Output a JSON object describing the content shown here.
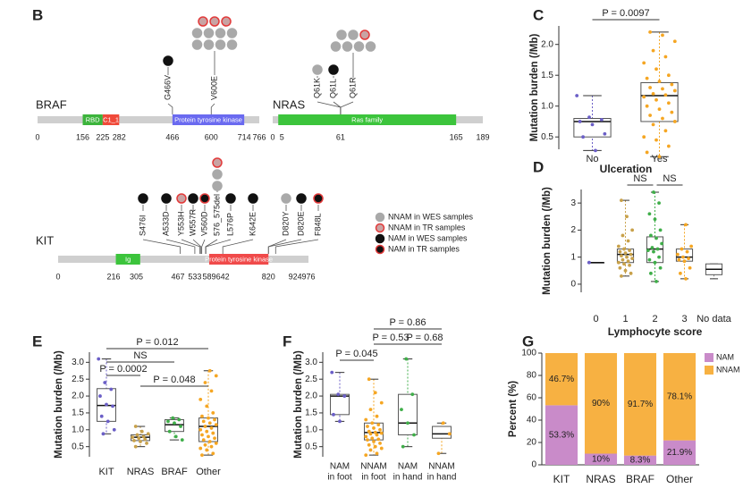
{
  "gene_diagram": {
    "panel_label": "B",
    "genes": [
      {
        "name": "BRAF",
        "length": 766,
        "ticks": [
          0,
          156,
          225,
          282,
          466,
          600,
          714,
          766
        ],
        "domains": [
          {
            "name": "RBD",
            "start": 156,
            "end": 225,
            "color": "#3cb43c"
          },
          {
            "name": "C1_1",
            "start": 225,
            "end": 282,
            "color": "#f04a3a"
          },
          {
            "name": "Protein tyrosine kinase",
            "start": 466,
            "end": 714,
            "color": "#6a6af0"
          }
        ],
        "mutations": [
          {
            "label": "G466V",
            "position": 466,
            "counts": {
              "nam_wes": 1
            }
          },
          {
            "label": "V600E",
            "position": 600,
            "counts": {
              "nnam_wes": 8,
              "nnam_tr": 3
            }
          }
        ]
      },
      {
        "name": "NRAS",
        "length": 189,
        "ticks": [
          0,
          5,
          61,
          165,
          189
        ],
        "domains": [
          {
            "name": "Ras family",
            "start": 5,
            "end": 165,
            "color": "#3cc43c"
          }
        ],
        "mutations": [
          {
            "label": "Q61K",
            "position": 61,
            "counts": {
              "nnam_wes": 1
            }
          },
          {
            "label": "Q61L",
            "position": 61,
            "counts": {
              "nam_wes": 1
            }
          },
          {
            "label": "Q61R",
            "position": 61,
            "counts": {
              "nnam_wes": 6,
              "nnam_tr": 1
            }
          }
        ]
      },
      {
        "name": "KIT",
        "length": 976,
        "ticks": [
          0,
          216,
          305,
          467,
          533,
          589,
          642,
          820,
          924,
          976
        ],
        "domains": [
          {
            "name": "Ig",
            "start": 225,
            "end": 320,
            "color": "#3cc43c"
          },
          {
            "name": "Protein tyrosine kinase",
            "start": 589,
            "end": 820,
            "color": "#f04a4a"
          }
        ],
        "mutations": [
          {
            "label": "S476I",
            "position": 476,
            "counts": {
              "nam_wes": 1
            }
          },
          {
            "label": "A533D",
            "position": 533,
            "counts": {
              "nam_wes": 1
            }
          },
          {
            "label": "Y553H",
            "position": 553,
            "counts": {
              "nnam_tr": 1
            }
          },
          {
            "label": "W557R",
            "position": 557,
            "counts": {
              "nam_wes": 1
            }
          },
          {
            "label": "V560D",
            "position": 560,
            "counts": {
              "nam_tr": 1
            }
          },
          {
            "label": "576_575del",
            "position": 575,
            "counts": {
              "nnam_wes": 2,
              "nnam_tr": 1
            }
          },
          {
            "label": "L576P",
            "position": 576,
            "counts": {
              "nam_wes": 1
            }
          },
          {
            "label": "K642E",
            "position": 642,
            "counts": {
              "nam_wes": 1
            }
          },
          {
            "label": "D820Y",
            "position": 820,
            "counts": {
              "nnam_wes": 1
            }
          },
          {
            "label": "D820E",
            "position": 820,
            "counts": {
              "nam_wes": 1
            }
          },
          {
            "label": "F848L",
            "position": 848,
            "counts": {
              "nam_tr": 1
            }
          }
        ]
      }
    ],
    "legend": [
      {
        "key": "nnam_wes",
        "label": "NNAM in WES samples",
        "fill": "#a9a9a9",
        "stroke": "#a9a9a9"
      },
      {
        "key": "nnam_tr",
        "label": "NNAM in TR samples",
        "fill": "#c9a3a3",
        "stroke": "#e23a3a"
      },
      {
        "key": "nam_wes",
        "label": "NAM in WES samples",
        "fill": "#111111",
        "stroke": "#111111"
      },
      {
        "key": "nam_tr",
        "label": "NAM in TR samples",
        "fill": "#111111",
        "stroke": "#e23a3a"
      }
    ]
  },
  "chart_data": [
    {
      "type": "box",
      "panel_label": "C",
      "annotations": [
        "P = 0.0097"
      ],
      "ylabel": "Mutation burden (/Mb)",
      "xlabel": "Ulceration",
      "categories": [
        "No",
        "Yes"
      ],
      "colors": [
        "#6b5fc7",
        "#f5a623"
      ],
      "boxes": [
        {
          "min": 0.28,
          "q1": 0.5,
          "median": 0.75,
          "q3": 0.8,
          "max": 1.17
        },
        {
          "min": 0.18,
          "q1": 0.75,
          "median": 1.17,
          "q3": 1.38,
          "max": 2.2
        }
      ],
      "points": [
        [
          1.17,
          0.82,
          0.78,
          0.75,
          0.7,
          0.55,
          0.5,
          0.28
        ],
        [
          2.2,
          2.15,
          2.05,
          1.9,
          1.8,
          1.7,
          1.6,
          1.5,
          1.45,
          1.4,
          1.35,
          1.3,
          1.28,
          1.25,
          1.2,
          1.18,
          1.15,
          1.1,
          1.05,
          1.0,
          0.95,
          0.9,
          0.85,
          0.8,
          0.75,
          0.7,
          0.6,
          0.5,
          0.45,
          0.35,
          0.25,
          0.18
        ]
      ],
      "ylim": [
        0.3,
        2.3
      ],
      "yticks": [
        0.5,
        {
          "value": 1,
          "label": "1.0"
        },
        1.5,
        {
          "value": 2,
          "label": "2.0"
        }
      ]
    },
    {
      "type": "box",
      "panel_label": "D",
      "annotations": [
        "NS",
        "NS"
      ],
      "ylabel": "Mutation burden (/Mb)",
      "xlabel": "Lymphocyte score",
      "categories": [
        "0",
        "1",
        "2",
        "3",
        "No data"
      ],
      "colors": [
        "#6b5fc7",
        "#c8a14a",
        "#3fae49",
        "#f5a623",
        "#888888"
      ],
      "boxes": [
        {
          "min": 0.8,
          "q1": 0.8,
          "median": 0.8,
          "q3": 0.8,
          "max": 0.8
        },
        {
          "min": 0.3,
          "q1": 0.8,
          "median": 1.1,
          "q3": 1.3,
          "max": 3.1
        },
        {
          "min": 0.1,
          "q1": 0.8,
          "median": 1.3,
          "q3": 1.75,
          "max": 3.4
        },
        {
          "min": 0.2,
          "q1": 0.85,
          "median": 1.0,
          "q3": 1.3,
          "max": 2.2
        },
        {
          "min": 0.2,
          "q1": 0.35,
          "median": 0.55,
          "q3": 0.75,
          "max": 0.75
        }
      ],
      "points": [
        [
          0.8
        ],
        [
          3.1,
          2.5,
          2.0,
          1.8,
          1.6,
          1.4,
          1.3,
          1.25,
          1.2,
          1.15,
          1.1,
          1.05,
          1.0,
          0.95,
          0.9,
          0.85,
          0.8,
          0.75,
          0.7,
          0.6,
          0.5,
          0.4,
          0.3
        ],
        [
          3.4,
          3.0,
          2.6,
          2.4,
          2.0,
          1.8,
          1.7,
          1.5,
          1.35,
          1.3,
          1.25,
          1.2,
          1.0,
          0.9,
          0.8,
          0.6,
          0.4,
          0.1
        ],
        [
          2.2,
          1.4,
          1.3,
          1.2,
          1.1,
          1.0,
          0.95,
          0.9,
          0.85,
          0.6,
          0.4,
          0.2
        ],
        []
      ],
      "ylim": [
        -0.3,
        3.5
      ],
      "yticks": [
        0,
        1,
        2,
        3
      ]
    },
    {
      "type": "box",
      "panel_label": "E",
      "annotations": [
        "P = 0.012",
        "NS",
        "P = 0.0002",
        "P = 0.048"
      ],
      "ylabel": "Mutation burden (/Mb)",
      "categories": [
        "KIT",
        "NRAS",
        "BRAF",
        "Other"
      ],
      "colors": [
        "#6b5fc7",
        "#c8a14a",
        "#3fae49",
        "#f5a623"
      ],
      "boxes": [
        {
          "min": 0.88,
          "q1": 1.25,
          "median": 1.72,
          "q3": 2.22,
          "max": 3.1
        },
        {
          "min": 0.5,
          "q1": 0.68,
          "median": 0.78,
          "q3": 0.85,
          "max": 1.1
        },
        {
          "min": 0.7,
          "q1": 0.95,
          "median": 1.15,
          "q3": 1.3,
          "max": 1.35
        },
        {
          "min": 0.25,
          "q1": 0.65,
          "median": 1.1,
          "q3": 1.35,
          "max": 2.75
        }
      ],
      "points": [
        [
          3.1,
          2.4,
          2.2,
          2.0,
          1.75,
          1.7,
          1.4,
          1.25,
          1.0,
          0.88
        ],
        [
          1.1,
          0.95,
          0.88,
          0.85,
          0.8,
          0.78,
          0.75,
          0.72,
          0.68,
          0.65,
          0.6,
          0.5
        ],
        [
          1.35,
          1.3,
          1.25,
          1.2,
          1.1,
          0.95,
          0.8,
          0.7
        ],
        [
          2.75,
          2.6,
          2.4,
          2.15,
          1.9,
          1.7,
          1.5,
          1.4,
          1.35,
          1.3,
          1.25,
          1.2,
          1.15,
          1.1,
          1.05,
          1.0,
          0.95,
          0.9,
          0.85,
          0.8,
          0.75,
          0.7,
          0.65,
          0.6,
          0.55,
          0.5,
          0.45,
          0.4,
          0.3,
          0.25
        ]
      ],
      "ylim": [
        0.2,
        3.3
      ],
      "yticks": [
        0.5,
        {
          "value": 1,
          "label": "1.0"
        },
        1.5,
        {
          "value": 2,
          "label": "2.0"
        },
        2.5,
        {
          "value": 3,
          "label": "3.0"
        }
      ]
    },
    {
      "type": "box",
      "panel_label": "F",
      "annotations": [
        "P = 0.86",
        "P = 0.53",
        "P = 0.68",
        "P = 0.045"
      ],
      "ylabel": "Mutation burden (/Mb)",
      "categories": [
        [
          "NAM",
          "in foot"
        ],
        [
          "NNAM",
          "in foot"
        ],
        [
          "NAM",
          "in hand"
        ],
        [
          "NNAM",
          "in hand"
        ]
      ],
      "colors": [
        "#6b5fc7",
        "#f5a623",
        "#3fae49",
        "#f5a623"
      ],
      "boxes": [
        {
          "min": 1.25,
          "q1": 1.45,
          "median": 2.0,
          "q3": 2.05,
          "max": 2.7
        },
        {
          "min": 0.25,
          "q1": 0.7,
          "median": 0.92,
          "q3": 1.2,
          "max": 2.5
        },
        {
          "min": 0.5,
          "q1": 0.85,
          "median": 1.2,
          "q3": 2.05,
          "max": 3.1
        },
        {
          "min": 0.3,
          "q1": 0.75,
          "median": 0.88,
          "q3": 1.1,
          "max": 1.2
        }
      ],
      "points": [
        [
          2.7,
          2.05,
          2.0,
          1.45,
          1.25
        ],
        [
          2.5,
          2.1,
          1.8,
          1.6,
          1.4,
          1.3,
          1.2,
          1.15,
          1.1,
          1.05,
          1.0,
          0.95,
          0.92,
          0.9,
          0.88,
          0.85,
          0.8,
          0.75,
          0.72,
          0.7,
          0.65,
          0.6,
          0.55,
          0.5,
          0.45,
          0.4,
          0.3,
          0.25
        ],
        [
          3.1,
          2.05,
          1.6,
          1.2,
          0.85,
          0.5
        ],
        [
          1.2,
          0.88,
          0.3
        ]
      ],
      "ylim": [
        0.2,
        3.3
      ],
      "yticks": [
        0.5,
        {
          "value": 1,
          "label": "1.0"
        },
        1.5,
        {
          "value": 2,
          "label": "2.0"
        },
        2.5,
        {
          "value": 3,
          "label": "3.0"
        }
      ]
    },
    {
      "type": "stacked_bar",
      "panel_label": "G",
      "ylabel": "Percent (%)",
      "legend": "top-right",
      "categories": [
        "KIT",
        "NRAS",
        "BRAF",
        "Other"
      ],
      "series": [
        {
          "name": "NAM",
          "color": "#c98bc9",
          "values": [
            53.3,
            10,
            8.3,
            21.9
          ],
          "value_labels": [
            "53.3%",
            "10%",
            "8.3%",
            "21.9%"
          ]
        },
        {
          "name": "NNAM",
          "color": "#f7b142",
          "values": [
            46.7,
            90,
            91.7,
            78.1
          ],
          "value_labels": [
            "46.7%",
            "90%",
            "91.7%",
            "78.1%"
          ]
        }
      ],
      "ylim": [
        0,
        100
      ],
      "yticks": [
        0,
        20,
        40,
        60,
        80,
        100
      ]
    }
  ]
}
